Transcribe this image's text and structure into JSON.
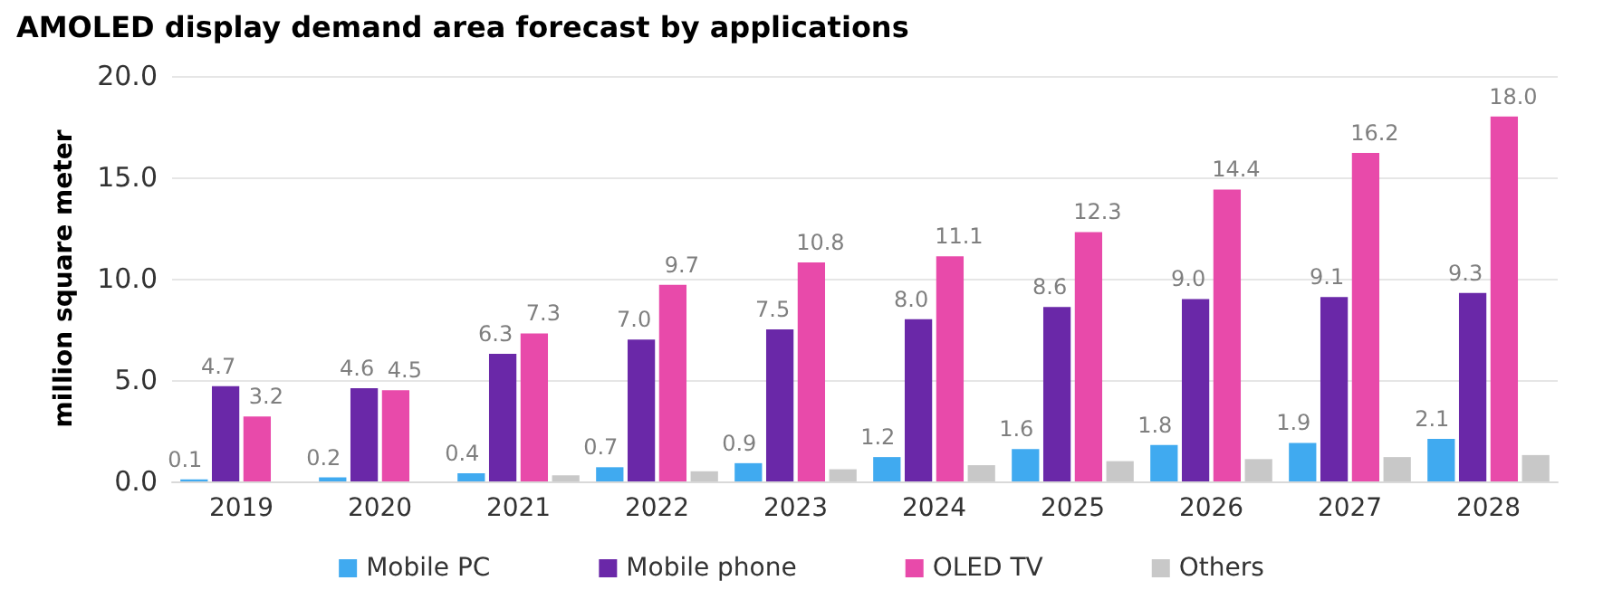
{
  "chart_data": {
    "type": "bar",
    "title": "AMOLED display demand area forecast by applications",
    "ylabel": "million square meter",
    "categories": [
      "2019",
      "2020",
      "2021",
      "2022",
      "2023",
      "2024",
      "2025",
      "2026",
      "2027",
      "2028"
    ],
    "series": [
      {
        "name": "Mobile PC",
        "color": "#40aaf0",
        "values": [
          0.1,
          0.2,
          0.4,
          0.7,
          0.9,
          1.2,
          1.6,
          1.8,
          1.9,
          2.1
        ],
        "value_labels": [
          "0.1",
          "0.2",
          "0.4",
          "0.7",
          "0.9",
          "1.2",
          "1.6",
          "1.8",
          "1.9",
          "2.1"
        ]
      },
      {
        "name": "Mobile phone",
        "color": "#6a28a8",
        "values": [
          4.7,
          4.6,
          6.3,
          7.0,
          7.5,
          8.0,
          8.6,
          9.0,
          9.1,
          9.3
        ],
        "value_labels": [
          "4.7",
          "4.6",
          "6.3",
          "7.0",
          "7.5",
          "8.0",
          "8.6",
          "9.0",
          "9.1",
          "9.3"
        ]
      },
      {
        "name": "OLED TV",
        "color": "#e84aaa",
        "values": [
          3.2,
          4.5,
          7.3,
          9.7,
          10.8,
          11.1,
          12.3,
          14.4,
          16.2,
          18.0
        ],
        "value_labels": [
          "3.2",
          "4.5",
          "7.3",
          "9.7",
          "10.8",
          "11.1",
          "12.3",
          "14.4",
          "16.2",
          "18.0"
        ]
      },
      {
        "name": "Others",
        "color": "#c8c8c8",
        "values": [
          null,
          null,
          0.3,
          0.5,
          0.6,
          0.8,
          1.0,
          1.1,
          1.2,
          1.3
        ]
      }
    ],
    "ylim": [
      0,
      20
    ],
    "yticks": [
      {
        "value": 0,
        "label": "0.0"
      },
      {
        "value": 5,
        "label": "5.0"
      },
      {
        "value": 10,
        "label": "10.0"
      },
      {
        "value": 15,
        "label": "15.0"
      },
      {
        "value": 20,
        "label": "20.0"
      }
    ],
    "grid": "y",
    "legend": "bottom"
  }
}
